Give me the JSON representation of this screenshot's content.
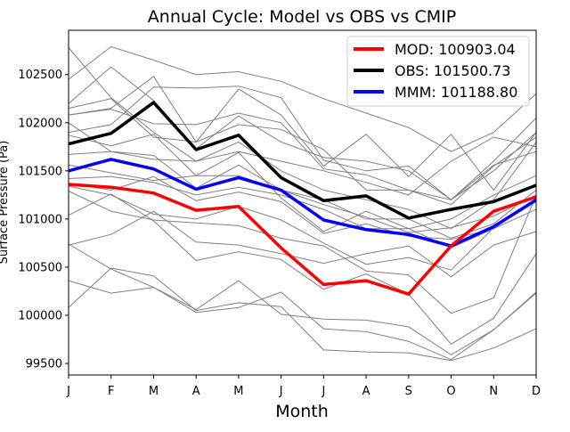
{
  "chart_data": {
    "type": "line",
    "title": "Annual Cycle: Model vs OBS vs CMIP",
    "xlabel": "Month",
    "ylabel": "Surface Pressure (Pa)",
    "categories": [
      "J",
      "F",
      "M",
      "A",
      "M",
      "J",
      "J",
      "A",
      "S",
      "O",
      "N",
      "D"
    ],
    "ylim": [
      99380,
      102960
    ],
    "yticks": [
      99500,
      100000,
      100500,
      101000,
      101500,
      102000,
      102500
    ],
    "colors": {
      "mod": "#ff0000",
      "obs": "#000000",
      "mmm": "#0000ff",
      "cmip": "#808080"
    },
    "series": [
      {
        "name": "MOD: 100903.04",
        "color": "#ff0000",
        "values": [
          101360,
          101330,
          101270,
          101090,
          101130,
          100700,
          100320,
          100360,
          100220,
          100720,
          101080,
          101230
        ]
      },
      {
        "name": "OBS: 101500.73",
        "color": "#000000",
        "values": [
          101780,
          101890,
          102210,
          101720,
          101870,
          101430,
          101190,
          101240,
          101010,
          101100,
          101180,
          101350
        ]
      },
      {
        "name": "MMM: 101188.80",
        "color": "#0000ff",
        "values": [
          101500,
          101620,
          101520,
          101310,
          101430,
          101300,
          100990,
          100890,
          100840,
          100720,
          100920,
          101200
        ]
      }
    ],
    "cmip_series": [
      [
        102780,
        102260,
        101900,
        101600,
        101800,
        101500,
        101300,
        101200,
        101100,
        100900,
        101200,
        101800
      ],
      [
        102450,
        102790,
        102650,
        102500,
        102530,
        102430,
        102250,
        102100,
        101950,
        101700,
        101900,
        102300
      ],
      [
        102200,
        102580,
        102230,
        101730,
        102070,
        101800,
        101640,
        101600,
        101500,
        101200,
        101500,
        101900
      ],
      [
        102150,
        102250,
        101850,
        101800,
        101980,
        101930,
        101720,
        101300,
        101300,
        101150,
        101550,
        101850
      ],
      [
        102080,
        102140,
        101990,
        101980,
        102100,
        102000,
        101520,
        101460,
        101300,
        101200,
        101560,
        101700
      ],
      [
        102080,
        102150,
        102480,
        101800,
        102350,
        102080,
        101550,
        101880,
        101440,
        101880,
        101300,
        101900
      ],
      [
        102000,
        101700,
        101620,
        101600,
        101700,
        101600,
        101500,
        101380,
        101250,
        101600,
        101850,
        101750
      ],
      [
        101900,
        101980,
        102370,
        102360,
        102380,
        102260,
        101610,
        101500,
        101550,
        101200,
        101600,
        102050
      ],
      [
        101870,
        101760,
        101880,
        101450,
        101690,
        101220,
        100870,
        101080,
        100900,
        101000,
        101250,
        101450
      ],
      [
        101670,
        101700,
        101660,
        101320,
        101560,
        101300,
        101150,
        101020,
        100860,
        100910,
        101030,
        101250
      ],
      [
        101560,
        101480,
        101400,
        101450,
        101450,
        101300,
        101200,
        101000,
        101000,
        100800,
        100950,
        101300
      ],
      [
        101420,
        101440,
        101380,
        101250,
        101330,
        101250,
        101100,
        100900,
        100900,
        100700,
        100900,
        101200
      ],
      [
        101370,
        101300,
        101440,
        101190,
        101280,
        101180,
        100850,
        100950,
        100820,
        100790,
        100900,
        101100
      ],
      [
        101340,
        101250,
        101050,
        101000,
        101130,
        100990,
        100750,
        100530,
        100600,
        100470,
        100910,
        101180
      ],
      [
        101290,
        101080,
        100990,
        100960,
        100930,
        100800,
        100720,
        100460,
        100420,
        100020,
        100180,
        101250
      ],
      [
        101040,
        101260,
        100980,
        100570,
        100660,
        100580,
        100270,
        100430,
        100220,
        99700,
        99970,
        100640
      ],
      [
        100730,
        100840,
        101080,
        100760,
        100730,
        100640,
        100540,
        100640,
        100720,
        100400,
        100730,
        100870
      ],
      [
        100740,
        100480,
        100290,
        100060,
        100360,
        100010,
        99960,
        99950,
        99880,
        99590,
        99850,
        100230
      ],
      [
        100360,
        100230,
        100290,
        100030,
        100080,
        100240,
        99860,
        99830,
        99730,
        99540,
        99850,
        100240
      ],
      [
        100080,
        100490,
        100410,
        100050,
        100130,
        100090,
        99640,
        99620,
        99610,
        99530,
        99660,
        99860
      ]
    ]
  }
}
